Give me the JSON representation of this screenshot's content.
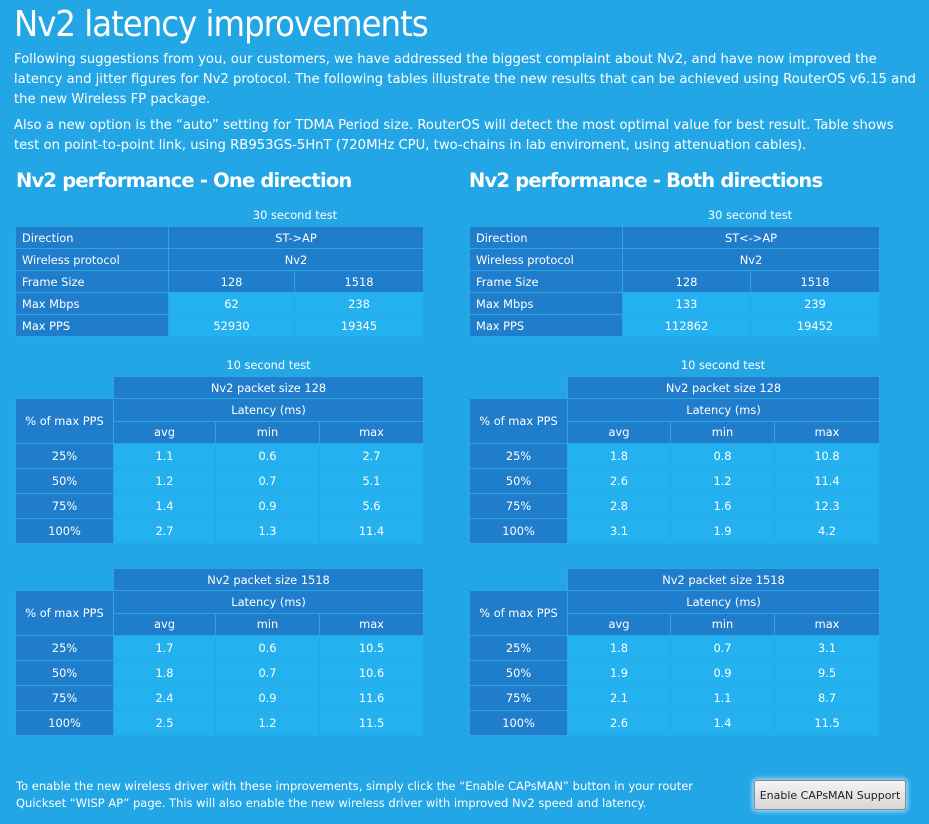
{
  "title": "Nv2 latency improvements",
  "intro1": "Following suggestions from you, our customers, we have addressed the biggest complaint about Nv2, and have now improved the latency and jitter figures for Nv2 protocol. The following tables illustrate the new results that can be achieved using RouterOS v6.15 and the new Wireless FP package.",
  "intro2": "Also a new option is the “auto” setting for  TDMA Period size. RouterOS will detect the most optimal value for best result. Table shows test on point-to-point link, using RB953GS-5HnT (720MHz CPU,  two-chains in lab enviroment, using attenuation cables).",
  "one": {
    "heading": "Nv2 performance - One direction",
    "caption30": "30 second test",
    "perf": {
      "direction_label": "Direction",
      "direction_value": "ST->AP",
      "protocol_label": "Wireless protocol",
      "protocol_value": "Nv2",
      "frame_label": "Frame Size",
      "frame_a": "128",
      "frame_b": "1518",
      "mbps_label": "Max Mbps",
      "mbps_a": "62",
      "mbps_b": "238",
      "pps_label": "Max PPS",
      "pps_a": "52930",
      "pps_b": "19345"
    },
    "caption10": "10 second test",
    "lat128": {
      "title": "Nv2 packet size 128",
      "row_label": "% of max PPS",
      "latency": "Latency (ms)",
      "avg": "avg",
      "min": "min",
      "max": "max",
      "rows": [
        {
          "pct": "25%",
          "avg": "1.1",
          "min": "0.6",
          "max": "2.7"
        },
        {
          "pct": "50%",
          "avg": "1.2",
          "min": "0.7",
          "max": "5.1"
        },
        {
          "pct": "75%",
          "avg": "1.4",
          "min": "0.9",
          "max": "5.6"
        },
        {
          "pct": "100%",
          "avg": "2.7",
          "min": "1.3",
          "max": "11.4"
        }
      ]
    },
    "lat1518": {
      "title": "Nv2 packet size 1518",
      "row_label": "% of max PPS",
      "latency": "Latency (ms)",
      "avg": "avg",
      "min": "min",
      "max": "max",
      "rows": [
        {
          "pct": "25%",
          "avg": "1.7",
          "min": "0.6",
          "max": "10.5"
        },
        {
          "pct": "50%",
          "avg": "1.8",
          "min": "0.7",
          "max": "10.6"
        },
        {
          "pct": "75%",
          "avg": "2.4",
          "min": "0.9",
          "max": "11.6"
        },
        {
          "pct": "100%",
          "avg": "2.5",
          "min": "1.2",
          "max": "11.5"
        }
      ]
    }
  },
  "both": {
    "heading": "Nv2 performance - Both directions",
    "caption30": "30 second test",
    "perf": {
      "direction_label": "Direction",
      "direction_value": "ST<->AP",
      "protocol_label": "Wireless protocol",
      "protocol_value": "Nv2",
      "frame_label": "Frame Size",
      "frame_a": "128",
      "frame_b": "1518",
      "mbps_label": "Max Mbps",
      "mbps_a": "133",
      "mbps_b": "239",
      "pps_label": "Max PPS",
      "pps_a": "112862",
      "pps_b": "19452"
    },
    "caption10": "10 second test",
    "lat128": {
      "title": "Nv2 packet size 128",
      "row_label": "% of max PPS",
      "latency": "Latency (ms)",
      "avg": "avg",
      "min": "min",
      "max": "max",
      "rows": [
        {
          "pct": "25%",
          "avg": "1.8",
          "min": "0.8",
          "max": "10.8"
        },
        {
          "pct": "50%",
          "avg": "2.6",
          "min": "1.2",
          "max": "11.4"
        },
        {
          "pct": "75%",
          "avg": "2.8",
          "min": "1.6",
          "max": "12.3"
        },
        {
          "pct": "100%",
          "avg": "3.1",
          "min": "1.9",
          "max": "4.2"
        }
      ]
    },
    "lat1518": {
      "title": "Nv2 packet size 1518",
      "row_label": "% of max PPS",
      "latency": "Latency (ms)",
      "avg": "avg",
      "min": "min",
      "max": "max",
      "rows": [
        {
          "pct": "25%",
          "avg": "1.8",
          "min": "0.7",
          "max": "3.1"
        },
        {
          "pct": "50%",
          "avg": "1.9",
          "min": "0.9",
          "max": "9.5"
        },
        {
          "pct": "75%",
          "avg": "2.1",
          "min": "1.1",
          "max": "8.7"
        },
        {
          "pct": "100%",
          "avg": "2.6",
          "min": "1.4",
          "max": "11.5"
        }
      ]
    }
  },
  "footer": "To enable the new wireless driver with these improvements, simply click the “Enable CAPsMAN” button in your router Quickset “WISP AP” page. This will also enable the new wireless driver with improved Nv2 speed and latency.",
  "button_label": "Enable CAPsMAN Support",
  "colors": {
    "background": "#22a6e6",
    "cell_dark": "#1f7dcb",
    "cell_light": "#23b2ef"
  }
}
